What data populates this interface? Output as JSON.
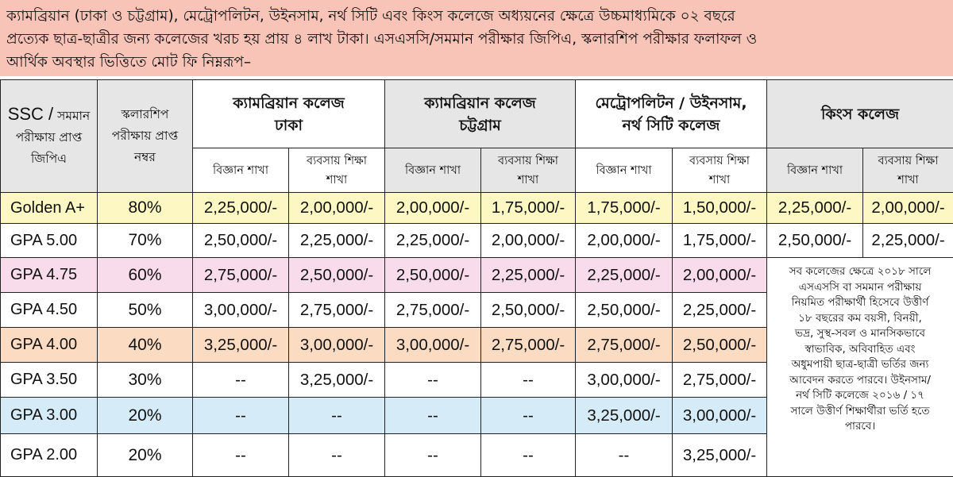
{
  "intro": {
    "lines": [
      "ক্যামব্রিয়ান (ঢাকা ও চট্টগ্রাম), মেট্রোপলিটন, উইনসাম, নর্থ সিটি এবং কিংস কলেজে অধ্যয়নের ক্ষেত্রে উচ্চমাধ্যমিকে ০২ বছরে",
      "প্রত্যেক ছাত্র-ছাত্রীর জন্য কলেজের খরচ হয় প্রায় ৪ লাখ টাকা। এসএসসি/সমমান পরীক্ষার জিপিএ, স্কলারশিপ পরীক্ষার ফলাফল ও",
      "আর্থিক অবস্থার ভিত্তিতে মোট ফি নিম্নরূপ–"
    ]
  },
  "header": {
    "gpa_col": {
      "big": "SSC /",
      "rest1": "সমমান",
      "line2": "পরীক্ষায় প্রাপ্ত",
      "line3": "জিপিএ"
    },
    "score_col": {
      "line1": "স্কলারশিপ",
      "line2": "পরীক্ষায় প্রাপ্ত",
      "line3": "নম্বর"
    },
    "colleges": [
      {
        "name1": "ক্যামব্রিয়ান কলেজ",
        "name2": "ঢাকা"
      },
      {
        "name1": "ক্যামব্রিয়ান কলেজ",
        "name2": "চট্টগ্রাম"
      },
      {
        "name1": "মেট্রোপলিটন / উইনসাম,",
        "name2": "নর্থ সিটি কলেজ"
      },
      {
        "name1": "কিংস কলেজ",
        "name2": ""
      }
    ],
    "sub": {
      "science": "বিজ্ঞান শাখা",
      "business1": "ব্যবসায় শিক্ষা",
      "business2": "শাখা"
    }
  },
  "rows": [
    {
      "gpa": "Golden A+",
      "pct": "80%",
      "fees": [
        "2,25,000/-",
        "2,00,000/-",
        "2,00,000/-",
        "1,75,000/-",
        "1,75,000/-",
        "1,50,000/-",
        "2,25,000/-",
        "2,00,000/-"
      ]
    },
    {
      "gpa": "GPA 5.00",
      "pct": "70%",
      "fees": [
        "2,50,000/-",
        "2,25,000/-",
        "2,25,000/-",
        "2,00,000/-",
        "2,00,000/-",
        "1,75,000/-",
        "2,50,000/-",
        "2,25,000/-"
      ]
    },
    {
      "gpa": "GPA 4.75",
      "pct": "60%",
      "fees": [
        "2,75,000/-",
        "2,50,000/-",
        "2,50,000/-",
        "2,25,000/-",
        "2,25,000/-",
        "2,00,000/-"
      ]
    },
    {
      "gpa": "GPA 4.50",
      "pct": "50%",
      "fees": [
        "3,00,000/-",
        "2,75,000/-",
        "2,75,000/-",
        "2,50,000/-",
        "2,50,000/-",
        "2,25,000/-"
      ]
    },
    {
      "gpa": "GPA 4.00",
      "pct": "40%",
      "fees": [
        "3,25,000/-",
        "3,00,000/-",
        "3,00,000/-",
        "2,75,000/-",
        "2,75,000/-",
        "2,50,000/-"
      ]
    },
    {
      "gpa": "GPA 3.50",
      "pct": "30%",
      "fees": [
        "--",
        "3,25,000/-",
        "--",
        "--",
        "3,00,000/-",
        "2,75,000/-"
      ]
    },
    {
      "gpa": "GPA 3.00",
      "pct": "20%",
      "fees": [
        "--",
        "--",
        "--",
        "--",
        "3,25,000/-",
        "3,00,000/-"
      ]
    },
    {
      "gpa": "GPA 2.00",
      "pct": "20%",
      "fees": [
        "--",
        "--",
        "--",
        "--",
        "--",
        "3,25,000/-"
      ]
    }
  ],
  "note": {
    "lines": [
      "সব কলেজের ক্ষেত্রে ২০১৮ সালে",
      "এসএসসি বা সমমান পরীক্ষায়",
      "নিয়মিত পরীক্ষার্থী হিসেবে উত্তীর্ণ",
      "১৮ বছরের কম বয়সী, বিনয়ী,",
      "ভদ্র, সুস্থ-সবল ও মানসিকভাবে",
      "স্বাভাবিক, অবিবাহিত এবং",
      "অধুমপায়ী ছাত্র-ছাত্রী ভর্তির জন্য",
      "আবেদন করতে পারবে। উইনসাম/",
      "নর্থ সিটি কলেজে ২০১৬ / ১৭",
      "সালে উত্তীর্ণ শিক্ষার্থীরা ভর্তি হতে",
      "পারবে।"
    ]
  },
  "colors": {
    "intro_bg": "#f8c4b8",
    "header_grey": "#e6e6e6",
    "row_yellow": "#fdf7c3",
    "row_pink": "#f9dcec",
    "row_peach": "#fbdcc3",
    "row_blue": "#d5ebf7"
  }
}
